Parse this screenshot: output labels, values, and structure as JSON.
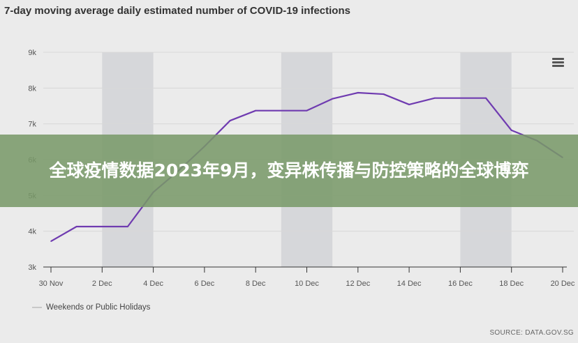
{
  "chart_data": {
    "type": "line",
    "title": "7-day moving average daily estimated number of COVID-19 infections",
    "x": [
      "30 Nov",
      "1 Dec",
      "2 Dec",
      "3 Dec",
      "4 Dec",
      "5 Dec",
      "6 Dec",
      "7 Dec",
      "8 Dec",
      "9 Dec",
      "10 Dec",
      "11 Dec",
      "12 Dec",
      "13 Dec",
      "14 Dec",
      "15 Dec",
      "16 Dec",
      "17 Dec",
      "18 Dec",
      "19 Dec",
      "20 Dec"
    ],
    "series": [
      {
        "values": [
          3720,
          4130,
          4130,
          4130,
          5090,
          5700,
          6370,
          7090,
          7370,
          7370,
          7370,
          7700,
          7870,
          7830,
          7540,
          7720,
          7720,
          7720,
          6820,
          6530,
          6060
        ],
        "color": "#6f3bb0"
      }
    ],
    "x_tick_labels": [
      "30 Nov",
      "2 Dec",
      "4 Dec",
      "6 Dec",
      "8 Dec",
      "10 Dec",
      "12 Dec",
      "14 Dec",
      "16 Dec",
      "18 Dec",
      "20 Dec"
    ],
    "y_ticks": [
      3000,
      4000,
      5000,
      6000,
      7000,
      8000,
      9000
    ],
    "y_tick_labels": [
      "3k",
      "4k",
      "5k",
      "6k",
      "7k",
      "8k",
      "9k"
    ],
    "ylim": [
      3000,
      9000
    ],
    "grid": true,
    "shaded_ranges": [
      [
        "2 Dec",
        "4 Dec"
      ],
      [
        "9 Dec",
        "11 Dec"
      ],
      [
        "16 Dec",
        "18 Dec"
      ]
    ],
    "shade_color": "#d6d7da",
    "legend": {
      "label": "Weekends or Public Holidays",
      "placement": "bottom-left"
    },
    "source": "SOURCE: DATA.GOV.SG"
  },
  "overlay_text": "全球疫情数据2023年9月，变异株传播与防控策略的全球博弈"
}
